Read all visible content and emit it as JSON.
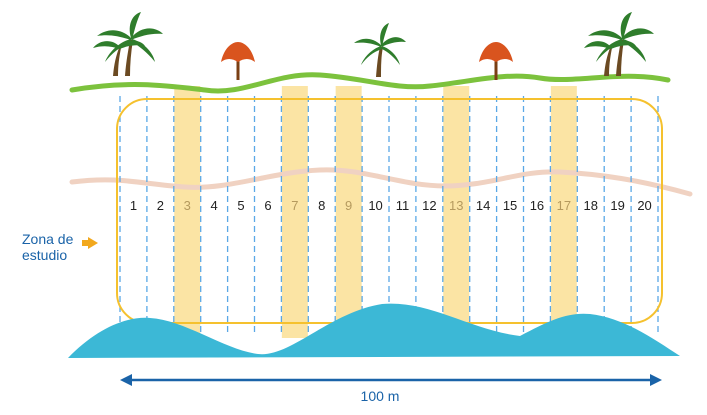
{
  "transects": [
    {
      "label": "1",
      "highlighted": false
    },
    {
      "label": "2",
      "highlighted": false
    },
    {
      "label": "3",
      "highlighted": true
    },
    {
      "label": "4",
      "highlighted": false
    },
    {
      "label": "5",
      "highlighted": false
    },
    {
      "label": "6",
      "highlighted": false
    },
    {
      "label": "7",
      "highlighted": true
    },
    {
      "label": "8",
      "highlighted": false
    },
    {
      "label": "9",
      "highlighted": true
    },
    {
      "label": "10",
      "highlighted": false
    },
    {
      "label": "11",
      "highlighted": false
    },
    {
      "label": "12",
      "highlighted": false
    },
    {
      "label": "13",
      "highlighted": true
    },
    {
      "label": "14",
      "highlighted": false
    },
    {
      "label": "15",
      "highlighted": false
    },
    {
      "label": "16",
      "highlighted": false
    },
    {
      "label": "17",
      "highlighted": true
    },
    {
      "label": "18",
      "highlighted": false
    },
    {
      "label": "19",
      "highlighted": false
    },
    {
      "label": "20",
      "highlighted": false
    }
  ],
  "zone_label_line1": "Zona de",
  "zone_label_line2": "estudio",
  "measure_label": "100 m",
  "colors": {
    "zone_border": "#f5c12e",
    "highlight": "#fbe4a4",
    "highlight_text": "#b59a5e",
    "transect_line": "#5aa8e6",
    "grass": "#7cc23d",
    "shore": "#f0d2c2",
    "water": "#3cb8d6",
    "measure": "#1a63a8",
    "palm_leaf": "#2f7d2c",
    "palm_trunk": "#6b4a22",
    "umbrella": "#d9541e",
    "umbrella_pole": "#7a3f14",
    "label_text": "#222222"
  },
  "icons": [
    "palm-tree-icon",
    "beach-umbrella-icon",
    "arrow-right-icon"
  ]
}
